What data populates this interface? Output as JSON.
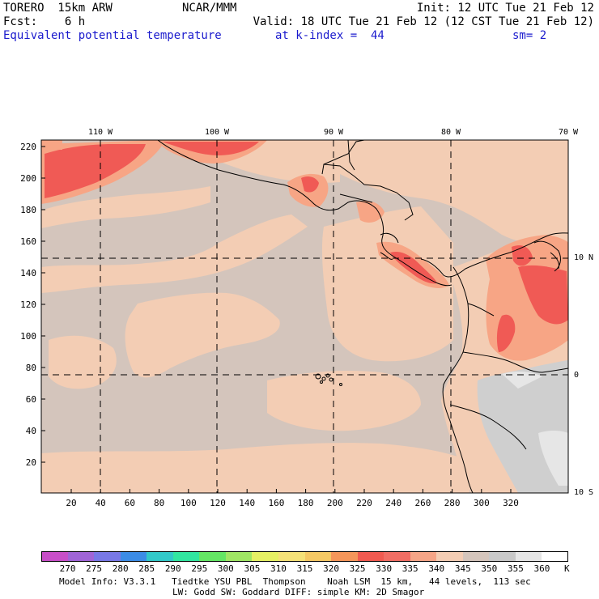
{
  "header": {
    "model": "TORERO  15km ARW",
    "center": "NCAR/MMM",
    "init": "Init: 12 UTC Tue 21 Feb 12",
    "fcst": "Fcst:    6 h",
    "valid": "Valid: 18 UTC Tue 21 Feb 12 (12 CST Tue 21 Feb 12)",
    "field": "Equivalent potential temperature",
    "level": "at k-index =  44",
    "smooth": "sm= 2"
  },
  "map": {
    "x_ticks": [
      "20",
      "40",
      "60",
      "80",
      "100",
      "120",
      "140",
      "160",
      "180",
      "200",
      "220",
      "240",
      "260",
      "280",
      "300",
      "320"
    ],
    "y_ticks": [
      "20",
      "40",
      "60",
      "80",
      "100",
      "120",
      "140",
      "160",
      "180",
      "200",
      "220"
    ],
    "lon_labels": [
      "110 W",
      "100 W",
      "90 W",
      "80 W",
      "70 W"
    ],
    "lat_labels": [
      "10 N",
      "0",
      "10 S"
    ],
    "colors": {
      "ocean": "#d4c5bc",
      "land_warm": "#f3cdb4",
      "hot1": "#f7a585",
      "hot2": "#f05a55",
      "andes": "#cfcfcf",
      "highland": "#e6e6e6"
    }
  },
  "colorbar": {
    "labels": [
      "270",
      "275",
      "280",
      "285",
      "290",
      "295",
      "300",
      "305",
      "310",
      "315",
      "320",
      "325",
      "330",
      "335",
      "340",
      "345",
      "350",
      "355",
      "360"
    ],
    "unit": "K",
    "colors": [
      "#c84fc8",
      "#a064d7",
      "#7878e6",
      "#3c8ce6",
      "#32c8c8",
      "#32e6a0",
      "#64e664",
      "#a0e664",
      "#e6f064",
      "#f5e178",
      "#f5c864",
      "#f5965a",
      "#f05a50",
      "#f06e64",
      "#f5a587",
      "#f3cdb4",
      "#d4c5bc",
      "#c8c8c8",
      "#e6e6e6",
      "#ffffff"
    ]
  },
  "footer": {
    "line1": "Model Info: V3.3.1   Tiedtke YSU PBL  Thompson    Noah LSM  15 km,   44 levels,  113 sec",
    "line2": "LW: Godd SW: Goddard DIFF: simple KM: 2D Smagor"
  }
}
